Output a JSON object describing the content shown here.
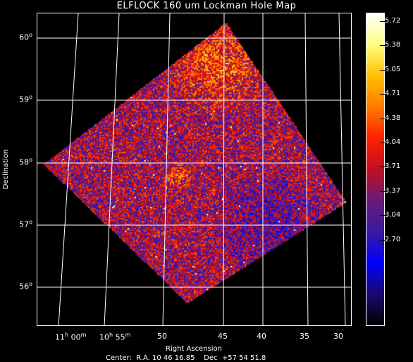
{
  "title": "ELFLOCK 160 um Lockman Hole Map",
  "axes": {
    "ylabel": "Declination",
    "xlabel": "Right Ascension",
    "center_text": "Center:  R.A. 10 46 16.85    Dec  +57 54 51.8"
  },
  "declination_ticks": [
    {
      "deg": "60",
      "unit": "o"
    },
    {
      "deg": "59",
      "unit": "o"
    },
    {
      "deg": "58",
      "unit": "o"
    },
    {
      "deg": "57",
      "unit": "o"
    },
    {
      "deg": "56",
      "unit": "o"
    }
  ],
  "ra_ticks": [
    {
      "h": "11",
      "h_unit": "h",
      "m": "00",
      "m_unit": "m"
    },
    {
      "h": "10",
      "h_unit": "h",
      "m": "55",
      "m_unit": "m"
    },
    {
      "text": "50"
    },
    {
      "text": "45"
    },
    {
      "text": "40"
    },
    {
      "text": "35"
    },
    {
      "text": "30"
    }
  ],
  "colorbar": {
    "ticks": [
      "5.72",
      "5.38",
      "5.05",
      "4.71",
      "4.38",
      "4.04",
      "3.71",
      "3.37",
      "3.04",
      "2.70"
    ],
    "colormap": "hot-blue",
    "colors": [
      "#000000",
      "#1a0a6e",
      "#0000ff",
      "#3a1aa0",
      "#6a1a78",
      "#c01020",
      "#ff2000",
      "#ff7a00",
      "#ffc000",
      "#ffff80",
      "#ffffff"
    ]
  },
  "chart_data": {
    "type": "heatmap",
    "title": "ELFLOCK 160 um Lockman Hole Map",
    "xlabel": "Right Ascension",
    "ylabel": "Declination",
    "color_range": [
      2.7,
      5.72
    ],
    "grid": true
  }
}
